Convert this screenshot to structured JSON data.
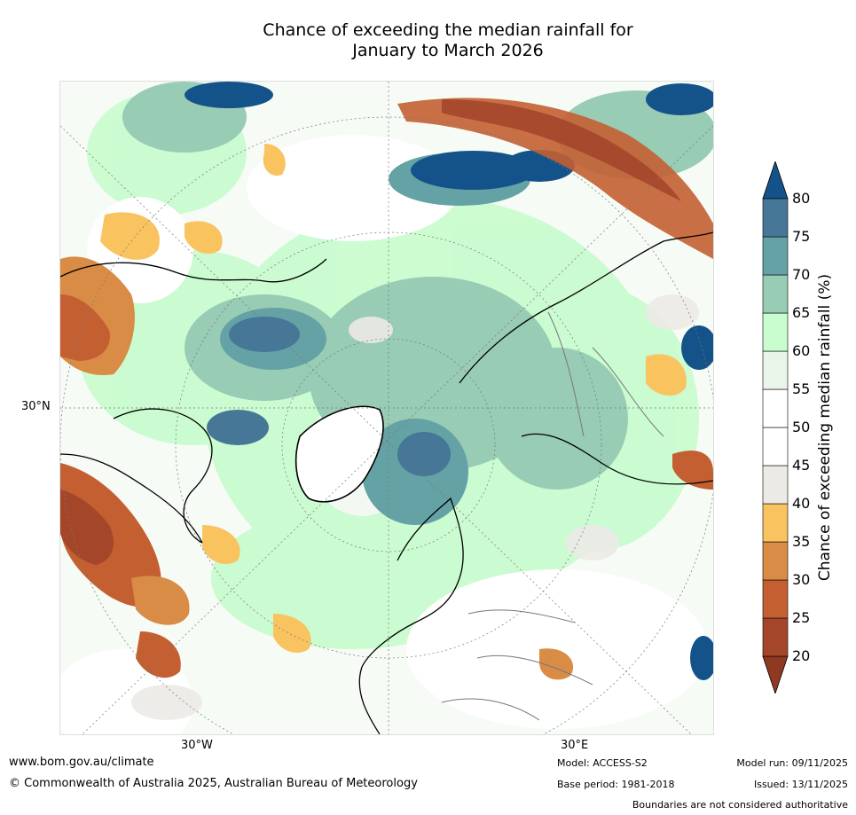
{
  "title_line1": "Chance of exceeding the median rainfall for",
  "title_line2": "January to March 2026",
  "map": {
    "lat_label": "30°N",
    "lon_labels": [
      "30°W",
      "30°E"
    ],
    "projection": "north-polar-stereographic"
  },
  "colorbar": {
    "title": "Chance of exceeding median rainfall (%)",
    "ticks": [
      "20",
      "25",
      "30",
      "35",
      "40",
      "45",
      "50",
      "55",
      "60",
      "65",
      "70",
      "75",
      "80"
    ],
    "colors": [
      "#a4462a",
      "#c45f32",
      "#d88c45",
      "#f9c460",
      "#eceae5",
      "#ffffff",
      "#ffffff",
      "#e9f5e9",
      "#c9fcce",
      "#98ccb4",
      "#65a2a5",
      "#467796"
    ],
    "under_color": "#8e3920",
    "over_color": "#14538a"
  },
  "footer": {
    "website": "www.bom.gov.au/climate",
    "copyright": "© Commonwealth of Australia 2025, Australian Bureau of Meteorology",
    "model": "Model: ACCESS-S2",
    "base_period": "Base period: 1981-2018",
    "model_run": "Model run: 09/11/2025",
    "issued": "Issued: 13/11/2025",
    "disclaimer": "Boundaries are not considered authoritative"
  }
}
